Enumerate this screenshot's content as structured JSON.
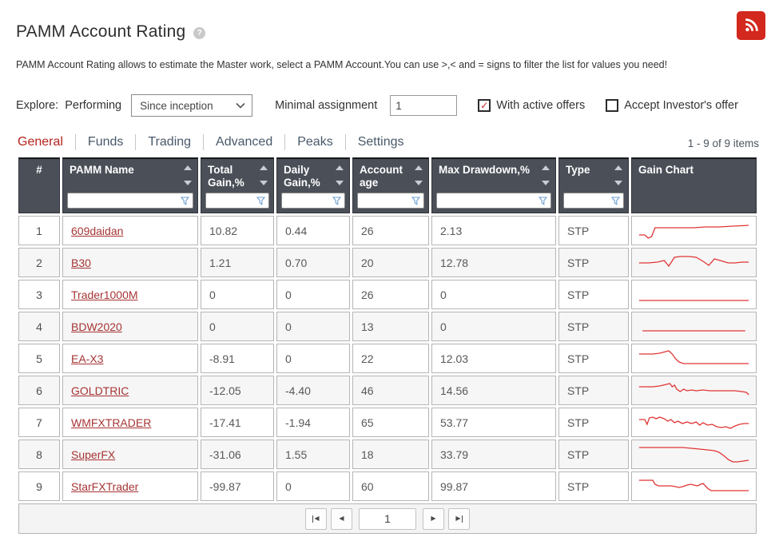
{
  "page": {
    "title": "PAMM Account Rating",
    "help_icon": "?",
    "description": "PAMM Account Rating allows to estimate the Master work, select a PAMM Account.You can use >,< and = signs to filter the list for values you need!"
  },
  "colors": {
    "accent_red": "#b5211c",
    "link_red": "#a63434",
    "sparkline_red": "#e03535",
    "rss_red": "#d3281d",
    "header_bg": "#4a4f58"
  },
  "filters": {
    "explore_label": "Explore:",
    "performing_label": "Performing",
    "period_selected": "Since inception",
    "minimal_assignment_label": "Minimal assignment",
    "minimal_assignment_value": "1",
    "with_active_offers": {
      "label": "With active offers",
      "checked": true
    },
    "accept_investors_offer": {
      "label": "Accept Investor's offer",
      "checked": false
    }
  },
  "tabs": [
    {
      "label": "General",
      "active": true
    },
    {
      "label": "Funds",
      "active": false
    },
    {
      "label": "Trading",
      "active": false
    },
    {
      "label": "Advanced",
      "active": false
    },
    {
      "label": "Peaks",
      "active": false
    },
    {
      "label": "Settings",
      "active": false
    }
  ],
  "items_count": "1 - 9 of 9 items",
  "table": {
    "columns": [
      {
        "key": "rank",
        "label": "#",
        "sortable": false,
        "filterable": false,
        "align": "center"
      },
      {
        "key": "name",
        "label": "PAMM Name",
        "sortable": true,
        "filterable": true
      },
      {
        "key": "total_gain",
        "label": "Total Gain,%",
        "sortable": true,
        "filterable": true
      },
      {
        "key": "daily_gain",
        "label": "Daily Gain,%",
        "sortable": true,
        "filterable": true
      },
      {
        "key": "account_age",
        "label": "Account age",
        "sortable": true,
        "filterable": true
      },
      {
        "key": "max_drawdown",
        "label": "Max Drawdown,%",
        "sortable": true,
        "filterable": true
      },
      {
        "key": "type",
        "label": "Type",
        "sortable": true,
        "filterable": true
      },
      {
        "key": "chart",
        "label": "Gain Chart",
        "sortable": false,
        "filterable": false
      }
    ],
    "rows": [
      {
        "rank": "1",
        "name": "609daidan",
        "total_gain": "10.82",
        "daily_gain": "0.44",
        "account_age": "26",
        "max_drawdown": "2.13",
        "type": "STP",
        "sparkline": [
          [
            2,
            19
          ],
          [
            7,
            19
          ],
          [
            10,
            23
          ],
          [
            13,
            21
          ],
          [
            16,
            10
          ],
          [
            30,
            10
          ],
          [
            50,
            10
          ],
          [
            60,
            9
          ],
          [
            72,
            9
          ],
          [
            84,
            8
          ],
          [
            98,
            7
          ]
        ]
      },
      {
        "rank": "2",
        "name": "B30",
        "total_gain": "1.21",
        "daily_gain": "0.70",
        "account_age": "20",
        "max_drawdown": "12.78",
        "type": "STP",
        "sparkline": [
          [
            2,
            14
          ],
          [
            10,
            14
          ],
          [
            18,
            13
          ],
          [
            24,
            11
          ],
          [
            28,
            18
          ],
          [
            33,
            7
          ],
          [
            38,
            6
          ],
          [
            46,
            6
          ],
          [
            52,
            7
          ],
          [
            58,
            12
          ],
          [
            63,
            17
          ],
          [
            68,
            9
          ],
          [
            73,
            11
          ],
          [
            80,
            14
          ],
          [
            86,
            14
          ],
          [
            92,
            13
          ],
          [
            98,
            13
          ]
        ]
      },
      {
        "rank": "3",
        "name": "Trader1000M",
        "total_gain": "0",
        "daily_gain": "0",
        "account_age": "26",
        "max_drawdown": "0",
        "type": "STP",
        "sparkline": [
          [
            2,
            21
          ],
          [
            98,
            21
          ]
        ]
      },
      {
        "rank": "4",
        "name": "BDW2020",
        "total_gain": "0",
        "daily_gain": "0",
        "account_age": "13",
        "max_drawdown": "0",
        "type": "STP",
        "sparkline": [
          [
            5,
            19
          ],
          [
            95,
            19
          ]
        ]
      },
      {
        "rank": "5",
        "name": "EA-X3",
        "total_gain": "-8.91",
        "daily_gain": "0",
        "account_age": "22",
        "max_drawdown": "12.03",
        "type": "STP",
        "sparkline": [
          [
            2,
            8
          ],
          [
            14,
            8
          ],
          [
            20,
            7
          ],
          [
            28,
            4
          ],
          [
            31,
            8
          ],
          [
            34,
            14
          ],
          [
            37,
            18
          ],
          [
            41,
            20
          ],
          [
            55,
            20
          ],
          [
            98,
            20
          ]
        ]
      },
      {
        "rank": "6",
        "name": "GOLDTRIC",
        "total_gain": "-12.05",
        "daily_gain": "-4.40",
        "account_age": "46",
        "max_drawdown": "14.56",
        "type": "STP",
        "sparkline": [
          [
            2,
            9
          ],
          [
            14,
            9
          ],
          [
            20,
            8
          ],
          [
            26,
            6
          ],
          [
            29,
            5
          ],
          [
            31,
            9
          ],
          [
            33,
            7
          ],
          [
            35,
            12
          ],
          [
            38,
            15
          ],
          [
            41,
            12
          ],
          [
            44,
            14
          ],
          [
            48,
            13
          ],
          [
            52,
            14
          ],
          [
            58,
            13
          ],
          [
            64,
            14
          ],
          [
            70,
            14
          ],
          [
            78,
            14
          ],
          [
            86,
            14
          ],
          [
            92,
            15
          ],
          [
            96,
            16
          ],
          [
            98,
            19
          ]
        ]
      },
      {
        "rank": "7",
        "name": "WMFXTRADER",
        "total_gain": "-17.41",
        "daily_gain": "-1.94",
        "account_age": "65",
        "max_drawdown": "53.77",
        "type": "STP",
        "sparkline": [
          [
            2,
            10
          ],
          [
            7,
            10
          ],
          [
            9,
            16
          ],
          [
            11,
            8
          ],
          [
            14,
            7
          ],
          [
            17,
            9
          ],
          [
            20,
            7
          ],
          [
            24,
            9
          ],
          [
            27,
            12
          ],
          [
            30,
            10
          ],
          [
            33,
            14
          ],
          [
            36,
            12
          ],
          [
            40,
            15
          ],
          [
            44,
            13
          ],
          [
            48,
            15
          ],
          [
            52,
            13
          ],
          [
            55,
            17
          ],
          [
            58,
            14
          ],
          [
            62,
            17
          ],
          [
            66,
            16
          ],
          [
            70,
            19
          ],
          [
            74,
            20
          ],
          [
            78,
            19
          ],
          [
            82,
            21
          ],
          [
            86,
            18
          ],
          [
            90,
            16
          ],
          [
            94,
            15
          ],
          [
            98,
            15
          ]
        ]
      },
      {
        "rank": "8",
        "name": "SuperFX",
        "total_gain": "-31.06",
        "daily_gain": "1.55",
        "account_age": "18",
        "max_drawdown": "33.79",
        "type": "STP",
        "sparkline": [
          [
            2,
            5
          ],
          [
            30,
            5
          ],
          [
            40,
            5
          ],
          [
            48,
            6
          ],
          [
            55,
            7
          ],
          [
            62,
            8
          ],
          [
            68,
            9
          ],
          [
            72,
            11
          ],
          [
            76,
            15
          ],
          [
            80,
            20
          ],
          [
            84,
            23
          ],
          [
            88,
            23
          ],
          [
            93,
            22
          ],
          [
            98,
            21
          ]
        ]
      },
      {
        "rank": "9",
        "name": "StarFXTrader",
        "total_gain": "-99.87",
        "daily_gain": "0",
        "account_age": "60",
        "max_drawdown": "99.87",
        "type": "STP",
        "sparkline": [
          [
            2,
            6
          ],
          [
            14,
            6
          ],
          [
            16,
            11
          ],
          [
            19,
            13
          ],
          [
            26,
            13
          ],
          [
            30,
            13
          ],
          [
            34,
            14
          ],
          [
            37,
            15
          ],
          [
            40,
            14
          ],
          [
            44,
            12
          ],
          [
            47,
            11
          ],
          [
            50,
            12
          ],
          [
            53,
            13
          ],
          [
            56,
            11
          ],
          [
            58,
            10
          ],
          [
            60,
            13
          ],
          [
            62,
            16
          ],
          [
            65,
            19
          ],
          [
            75,
            19
          ],
          [
            98,
            19
          ]
        ]
      }
    ]
  },
  "pagination": {
    "current_page": "1"
  }
}
